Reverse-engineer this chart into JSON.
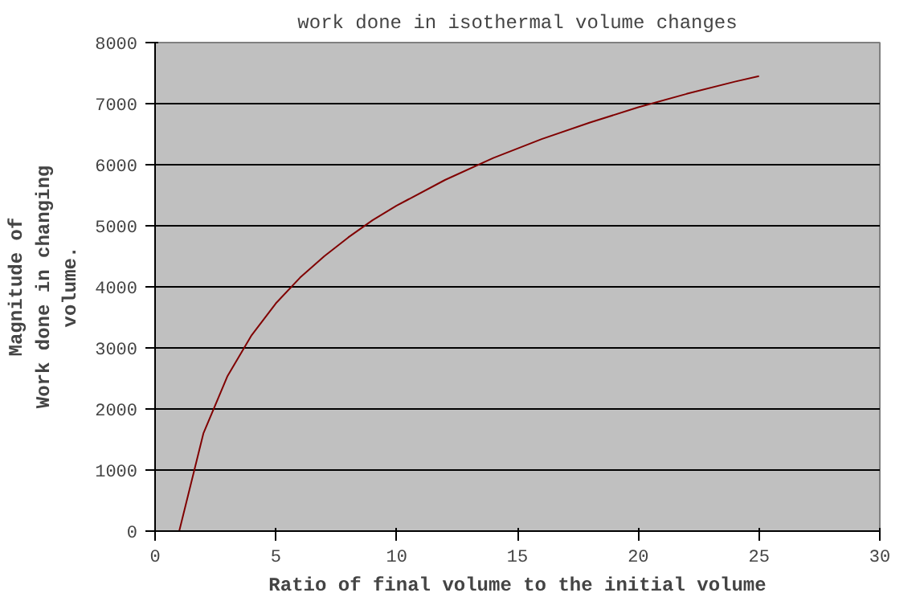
{
  "chart_data": {
    "type": "line",
    "title": "work done in isothermal volume changes",
    "xlabel": "Ratio of final volume to the initial volume",
    "ylabel": "Magnitude of\nWork done in changing\nvolume.",
    "x": [
      1,
      2,
      3,
      4,
      5,
      6,
      7,
      8,
      9,
      10,
      12,
      14,
      16,
      18,
      20,
      22,
      24,
      25
    ],
    "series": [
      {
        "color": "#800000",
        "values": [
          0,
          1600,
          2540,
          3210,
          3730,
          4150,
          4500,
          4810,
          5090,
          5330,
          5750,
          6110,
          6420,
          6690,
          6940,
          7160,
          7360,
          7450
        ]
      }
    ],
    "xlim": [
      0,
      30
    ],
    "xticks": [
      0,
      5,
      10,
      15,
      20,
      25,
      30
    ],
    "ylim": [
      0,
      8000
    ],
    "yticks": [
      0,
      1000,
      2000,
      3000,
      4000,
      5000,
      6000,
      7000,
      8000
    ],
    "grid": "y",
    "marker": "none",
    "line_style": "solid"
  }
}
